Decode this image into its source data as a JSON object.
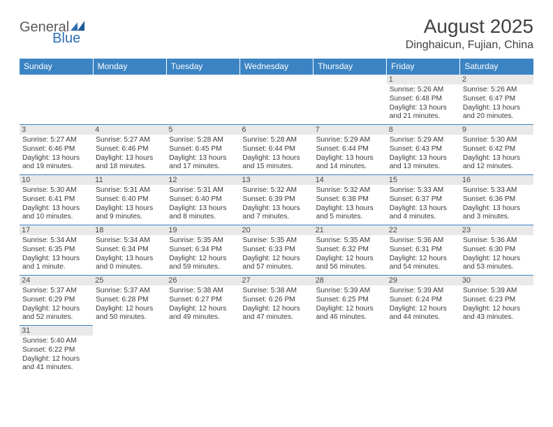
{
  "logo": {
    "text1": "General",
    "text2": "Blue"
  },
  "title": "August 2025",
  "location": "Dinghaicun, Fujian, China",
  "colors": {
    "header_bg": "#3b84c4",
    "header_text": "#ffffff",
    "daynum_bg": "#e9e9e9",
    "border": "#3b84c4",
    "text": "#3a3a3a"
  },
  "weekdays": [
    "Sunday",
    "Monday",
    "Tuesday",
    "Wednesday",
    "Thursday",
    "Friday",
    "Saturday"
  ],
  "weeks": [
    [
      {
        "n": "",
        "sr": "",
        "ss": "",
        "dl": ""
      },
      {
        "n": "",
        "sr": "",
        "ss": "",
        "dl": ""
      },
      {
        "n": "",
        "sr": "",
        "ss": "",
        "dl": ""
      },
      {
        "n": "",
        "sr": "",
        "ss": "",
        "dl": ""
      },
      {
        "n": "",
        "sr": "",
        "ss": "",
        "dl": ""
      },
      {
        "n": "1",
        "sr": "Sunrise: 5:26 AM",
        "ss": "Sunset: 6:48 PM",
        "dl": "Daylight: 13 hours and 21 minutes."
      },
      {
        "n": "2",
        "sr": "Sunrise: 5:26 AM",
        "ss": "Sunset: 6:47 PM",
        "dl": "Daylight: 13 hours and 20 minutes."
      }
    ],
    [
      {
        "n": "3",
        "sr": "Sunrise: 5:27 AM",
        "ss": "Sunset: 6:46 PM",
        "dl": "Daylight: 13 hours and 19 minutes."
      },
      {
        "n": "4",
        "sr": "Sunrise: 5:27 AM",
        "ss": "Sunset: 6:46 PM",
        "dl": "Daylight: 13 hours and 18 minutes."
      },
      {
        "n": "5",
        "sr": "Sunrise: 5:28 AM",
        "ss": "Sunset: 6:45 PM",
        "dl": "Daylight: 13 hours and 17 minutes."
      },
      {
        "n": "6",
        "sr": "Sunrise: 5:28 AM",
        "ss": "Sunset: 6:44 PM",
        "dl": "Daylight: 13 hours and 15 minutes."
      },
      {
        "n": "7",
        "sr": "Sunrise: 5:29 AM",
        "ss": "Sunset: 6:44 PM",
        "dl": "Daylight: 13 hours and 14 minutes."
      },
      {
        "n": "8",
        "sr": "Sunrise: 5:29 AM",
        "ss": "Sunset: 6:43 PM",
        "dl": "Daylight: 13 hours and 13 minutes."
      },
      {
        "n": "9",
        "sr": "Sunrise: 5:30 AM",
        "ss": "Sunset: 6:42 PM",
        "dl": "Daylight: 13 hours and 12 minutes."
      }
    ],
    [
      {
        "n": "10",
        "sr": "Sunrise: 5:30 AM",
        "ss": "Sunset: 6:41 PM",
        "dl": "Daylight: 13 hours and 10 minutes."
      },
      {
        "n": "11",
        "sr": "Sunrise: 5:31 AM",
        "ss": "Sunset: 6:40 PM",
        "dl": "Daylight: 13 hours and 9 minutes."
      },
      {
        "n": "12",
        "sr": "Sunrise: 5:31 AM",
        "ss": "Sunset: 6:40 PM",
        "dl": "Daylight: 13 hours and 8 minutes."
      },
      {
        "n": "13",
        "sr": "Sunrise: 5:32 AM",
        "ss": "Sunset: 6:39 PM",
        "dl": "Daylight: 13 hours and 7 minutes."
      },
      {
        "n": "14",
        "sr": "Sunrise: 5:32 AM",
        "ss": "Sunset: 6:38 PM",
        "dl": "Daylight: 13 hours and 5 minutes."
      },
      {
        "n": "15",
        "sr": "Sunrise: 5:33 AM",
        "ss": "Sunset: 6:37 PM",
        "dl": "Daylight: 13 hours and 4 minutes."
      },
      {
        "n": "16",
        "sr": "Sunrise: 5:33 AM",
        "ss": "Sunset: 6:36 PM",
        "dl": "Daylight: 13 hours and 3 minutes."
      }
    ],
    [
      {
        "n": "17",
        "sr": "Sunrise: 5:34 AM",
        "ss": "Sunset: 6:35 PM",
        "dl": "Daylight: 13 hours and 1 minute."
      },
      {
        "n": "18",
        "sr": "Sunrise: 5:34 AM",
        "ss": "Sunset: 6:34 PM",
        "dl": "Daylight: 13 hours and 0 minutes."
      },
      {
        "n": "19",
        "sr": "Sunrise: 5:35 AM",
        "ss": "Sunset: 6:34 PM",
        "dl": "Daylight: 12 hours and 59 minutes."
      },
      {
        "n": "20",
        "sr": "Sunrise: 5:35 AM",
        "ss": "Sunset: 6:33 PM",
        "dl": "Daylight: 12 hours and 57 minutes."
      },
      {
        "n": "21",
        "sr": "Sunrise: 5:35 AM",
        "ss": "Sunset: 6:32 PM",
        "dl": "Daylight: 12 hours and 56 minutes."
      },
      {
        "n": "22",
        "sr": "Sunrise: 5:36 AM",
        "ss": "Sunset: 6:31 PM",
        "dl": "Daylight: 12 hours and 54 minutes."
      },
      {
        "n": "23",
        "sr": "Sunrise: 5:36 AM",
        "ss": "Sunset: 6:30 PM",
        "dl": "Daylight: 12 hours and 53 minutes."
      }
    ],
    [
      {
        "n": "24",
        "sr": "Sunrise: 5:37 AM",
        "ss": "Sunset: 6:29 PM",
        "dl": "Daylight: 12 hours and 52 minutes."
      },
      {
        "n": "25",
        "sr": "Sunrise: 5:37 AM",
        "ss": "Sunset: 6:28 PM",
        "dl": "Daylight: 12 hours and 50 minutes."
      },
      {
        "n": "26",
        "sr": "Sunrise: 5:38 AM",
        "ss": "Sunset: 6:27 PM",
        "dl": "Daylight: 12 hours and 49 minutes."
      },
      {
        "n": "27",
        "sr": "Sunrise: 5:38 AM",
        "ss": "Sunset: 6:26 PM",
        "dl": "Daylight: 12 hours and 47 minutes."
      },
      {
        "n": "28",
        "sr": "Sunrise: 5:39 AM",
        "ss": "Sunset: 6:25 PM",
        "dl": "Daylight: 12 hours and 46 minutes."
      },
      {
        "n": "29",
        "sr": "Sunrise: 5:39 AM",
        "ss": "Sunset: 6:24 PM",
        "dl": "Daylight: 12 hours and 44 minutes."
      },
      {
        "n": "30",
        "sr": "Sunrise: 5:39 AM",
        "ss": "Sunset: 6:23 PM",
        "dl": "Daylight: 12 hours and 43 minutes."
      }
    ],
    [
      {
        "n": "31",
        "sr": "Sunrise: 5:40 AM",
        "ss": "Sunset: 6:22 PM",
        "dl": "Daylight: 12 hours and 41 minutes."
      },
      {
        "n": "",
        "sr": "",
        "ss": "",
        "dl": ""
      },
      {
        "n": "",
        "sr": "",
        "ss": "",
        "dl": ""
      },
      {
        "n": "",
        "sr": "",
        "ss": "",
        "dl": ""
      },
      {
        "n": "",
        "sr": "",
        "ss": "",
        "dl": ""
      },
      {
        "n": "",
        "sr": "",
        "ss": "",
        "dl": ""
      },
      {
        "n": "",
        "sr": "",
        "ss": "",
        "dl": ""
      }
    ]
  ]
}
